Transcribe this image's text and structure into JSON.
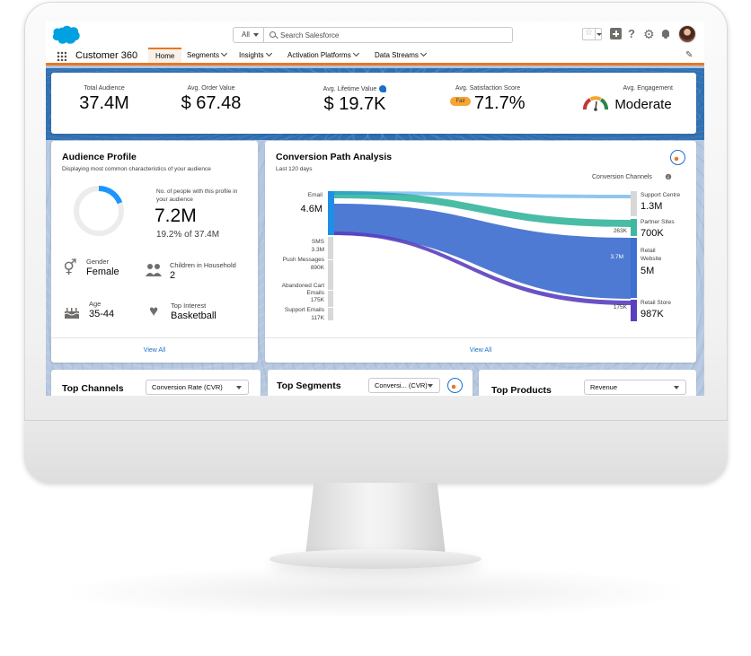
{
  "topbar": {
    "search_scope": "All",
    "search_placeholder": "Search Salesforce"
  },
  "nav": {
    "app_name": "Customer 360",
    "tabs": [
      {
        "label": "Home",
        "active": true,
        "has_menu": false
      },
      {
        "label": "Segments",
        "active": false,
        "has_menu": true
      },
      {
        "label": "Insights",
        "active": false,
        "has_menu": true
      },
      {
        "label": "Activation Platforms",
        "active": false,
        "has_menu": true
      },
      {
        "label": "Data Streams",
        "active": false,
        "has_menu": true
      }
    ]
  },
  "kpis": {
    "total_audience": {
      "label": "Total Audience",
      "value": "37.4M"
    },
    "avg_order_value": {
      "label": "Avg. Order Value",
      "value": "$ 67.48"
    },
    "avg_lifetime_value": {
      "label": "Avg. Lifetime Value",
      "value": "$ 19.7K"
    },
    "avg_satisfaction": {
      "label": "Avg. Satisfaction Score",
      "badge": "Fair",
      "value": "71.7%"
    },
    "avg_engagement": {
      "label": "Avg. Engagement",
      "value": "Moderate"
    }
  },
  "audience_profile": {
    "title": "Audience Profile",
    "subtitle": "Displaying most common characteristics of your audience",
    "donut_caption": "No. of people with this profile in your audience",
    "donut_value": "7.2M",
    "donut_percent_text": "19.2% of 37.4M",
    "donut_fraction": 0.192,
    "attributes": {
      "gender": {
        "label": "Gender",
        "value": "Female"
      },
      "children": {
        "label": "Children in Household",
        "value": "2"
      },
      "age": {
        "label": "Age",
        "value": "35-44"
      },
      "interest": {
        "label": "Top Interest",
        "value": "Basketball"
      }
    },
    "view_all": "View All"
  },
  "conversion": {
    "title": "Conversion Path Analysis",
    "subtitle": "Last 120 days",
    "channels_label": "Conversion Channels",
    "view_all": "View All",
    "sources": [
      {
        "name": "Email",
        "value": "4.6M"
      },
      {
        "name": "SMS",
        "value": "3.3M"
      },
      {
        "name": "Push Messages",
        "value": "890K"
      },
      {
        "name": "Abandoned Cart Emails",
        "value": "175K"
      },
      {
        "name": "Support Emails",
        "value": "117K"
      }
    ],
    "targets": [
      {
        "name": "Support Centre",
        "value": "1.3M"
      },
      {
        "name": "Partner Sites",
        "value": "700K"
      },
      {
        "name": "Retail Website",
        "value": "5M"
      },
      {
        "name": "Retail Store",
        "value": "987K"
      }
    ],
    "flow_labels": {
      "partner": "263K",
      "website": "3.7M",
      "store": "175K"
    },
    "colors": {
      "email": "#1f8fe5",
      "website": "#3f6fcf",
      "partner": "#3fb8a0",
      "store": "#5a3fbf",
      "inactive": "#d8d8d8"
    }
  },
  "bottom": {
    "top_channels": {
      "title": "Top Channels",
      "select": "Conversion Rate (CVR)"
    },
    "top_segments": {
      "title": "Top Segments",
      "select": "Conversi... (CVR)"
    },
    "top_products": {
      "title": "Top Products",
      "select": "Revenue"
    }
  }
}
